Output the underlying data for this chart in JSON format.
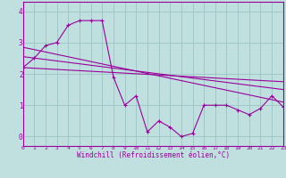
{
  "background_color": "#c0e0e0",
  "grid_color": "#a0c8c8",
  "line_color": "#990099",
  "xlabel": "Windchill (Refroidissement éolien,°C)",
  "xlim": [
    0,
    23
  ],
  "ylim": [
    -0.3,
    4.3
  ],
  "yticks": [
    0,
    1,
    2,
    3,
    4
  ],
  "xticks": [
    0,
    1,
    2,
    3,
    4,
    5,
    6,
    7,
    8,
    9,
    10,
    11,
    12,
    13,
    14,
    15,
    16,
    17,
    18,
    19,
    20,
    21,
    22,
    23
  ],
  "main_x": [
    0,
    1,
    2,
    3,
    4,
    5,
    6,
    7,
    8,
    9,
    10,
    11,
    12,
    13,
    14,
    15,
    16,
    17,
    18,
    19,
    20,
    21,
    22,
    23
  ],
  "main_y": [
    2.2,
    2.5,
    2.9,
    3.0,
    3.55,
    3.7,
    3.7,
    3.7,
    1.9,
    1.0,
    1.3,
    0.15,
    0.5,
    0.3,
    0.0,
    0.1,
    1.0,
    1.0,
    1.0,
    0.85,
    0.7,
    0.9,
    1.3,
    0.95
  ],
  "trend1_x": [
    0,
    23
  ],
  "trend1_y": [
    2.85,
    1.1
  ],
  "trend2_x": [
    0,
    23
  ],
  "trend2_y": [
    2.55,
    1.5
  ],
  "trend3_x": [
    0,
    23
  ],
  "trend3_y": [
    2.2,
    1.75
  ]
}
